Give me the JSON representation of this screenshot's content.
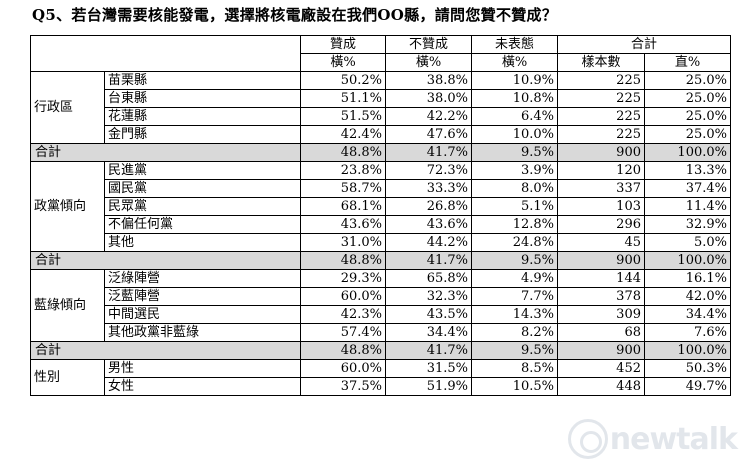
{
  "title": "Q5、若台灣需要核能發電，選擇將核電廠設在我們OO縣，請問您贊不贊成？",
  "columns": {
    "agree": "贊成",
    "disagree": "不贊成",
    "no_opinion": "未表態",
    "total": "合計",
    "row_pct": "橫%",
    "sample": "樣本數",
    "col_pct": "直%"
  },
  "groups": [
    {
      "label": "行政區",
      "rows": [
        {
          "name": "苗栗縣",
          "agree": "50.2%",
          "disagree": "38.8%",
          "no": "10.9%",
          "n": "225",
          "col": "25.0%"
        },
        {
          "name": "台東縣",
          "agree": "51.1%",
          "disagree": "38.0%",
          "no": "10.8%",
          "n": "225",
          "col": "25.0%"
        },
        {
          "name": "花蓮縣",
          "agree": "51.5%",
          "disagree": "42.2%",
          "no": "6.4%",
          "n": "225",
          "col": "25.0%"
        },
        {
          "name": "金門縣",
          "agree": "42.4%",
          "disagree": "47.6%",
          "no": "10.0%",
          "n": "225",
          "col": "25.0%"
        }
      ],
      "total": {
        "label": "合計",
        "agree": "48.8%",
        "disagree": "41.7%",
        "no": "9.5%",
        "n": "900",
        "col": "100.0%"
      }
    },
    {
      "label": "政黨傾向",
      "rows": [
        {
          "name": "民進黨",
          "agree": "23.8%",
          "disagree": "72.3%",
          "no": "3.9%",
          "n": "120",
          "col": "13.3%"
        },
        {
          "name": "國民黨",
          "agree": "58.7%",
          "disagree": "33.3%",
          "no": "8.0%",
          "n": "337",
          "col": "37.4%"
        },
        {
          "name": "民眾黨",
          "agree": "68.1%",
          "disagree": "26.8%",
          "no": "5.1%",
          "n": "103",
          "col": "11.4%"
        },
        {
          "name": "不偏任何黨",
          "agree": "43.6%",
          "disagree": "43.6%",
          "no": "12.8%",
          "n": "296",
          "col": "32.9%"
        },
        {
          "name": "其他",
          "agree": "31.0%",
          "disagree": "44.2%",
          "no": "24.8%",
          "n": "45",
          "col": "5.0%"
        }
      ],
      "total": {
        "label": "合計",
        "agree": "48.8%",
        "disagree": "41.7%",
        "no": "9.5%",
        "n": "900",
        "col": "100.0%"
      }
    },
    {
      "label": "藍綠傾向",
      "rows": [
        {
          "name": "泛綠陣營",
          "agree": "29.3%",
          "disagree": "65.8%",
          "no": "4.9%",
          "n": "144",
          "col": "16.1%"
        },
        {
          "name": "泛藍陣營",
          "agree": "60.0%",
          "disagree": "32.3%",
          "no": "7.7%",
          "n": "378",
          "col": "42.0%"
        },
        {
          "name": "中間選民",
          "agree": "42.3%",
          "disagree": "43.5%",
          "no": "14.3%",
          "n": "309",
          "col": "34.4%"
        },
        {
          "name": "其他政黨非藍綠",
          "agree": "57.4%",
          "disagree": "34.4%",
          "no": "8.2%",
          "n": "68",
          "col": "7.6%"
        }
      ],
      "total": {
        "label": "合計",
        "agree": "48.8%",
        "disagree": "41.7%",
        "no": "9.5%",
        "n": "900",
        "col": "100.0%"
      }
    },
    {
      "label": "性別",
      "rows": [
        {
          "name": "男性",
          "agree": "60.0%",
          "disagree": "31.5%",
          "no": "8.5%",
          "n": "452",
          "col": "50.3%"
        },
        {
          "name": "女性",
          "agree": "37.5%",
          "disagree": "51.9%",
          "no": "10.5%",
          "n": "448",
          "col": "49.7%"
        }
      ]
    }
  ],
  "watermark": "newtalk"
}
